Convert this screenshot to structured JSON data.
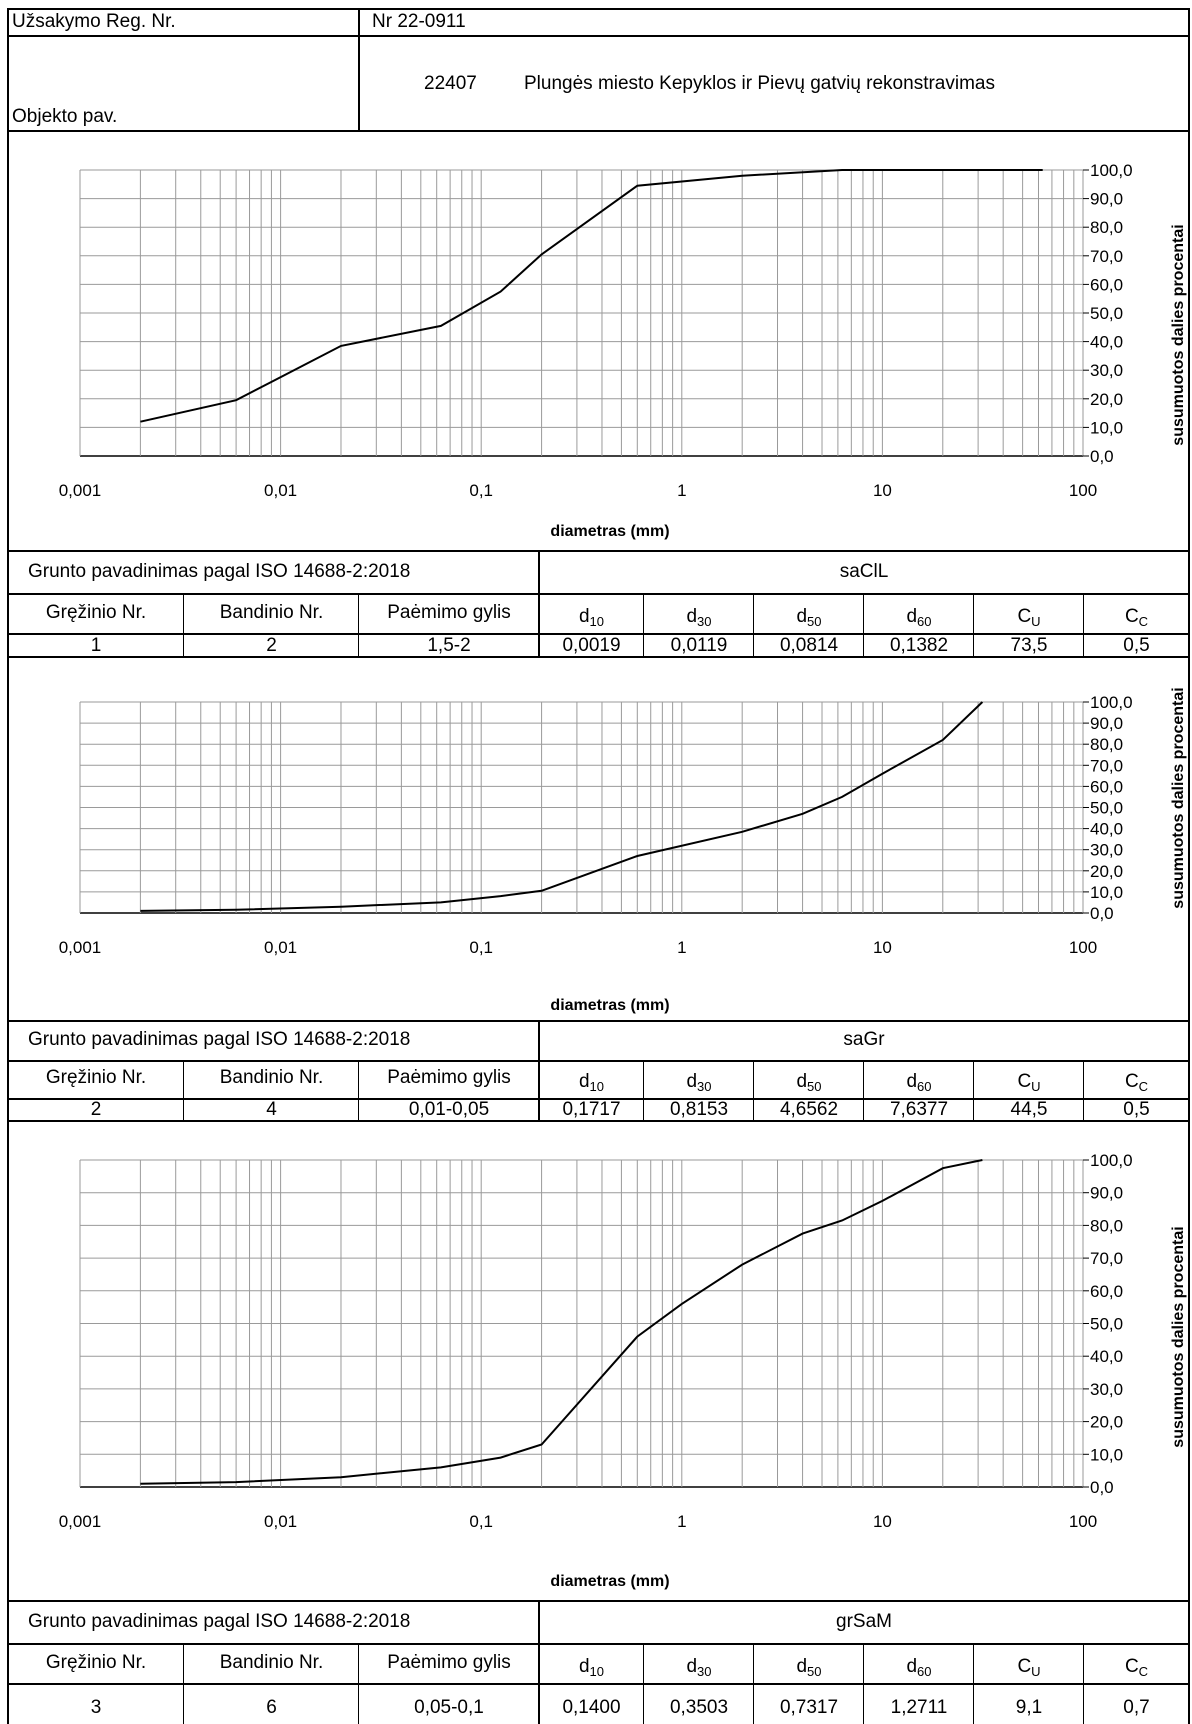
{
  "header": {
    "order_label": "Užsakymo Reg. Nr.",
    "order_value": "Nr 22-0911",
    "object_label": "Objekto pav.",
    "object_code": "22407",
    "object_name": "Plungės miesto Kepyklos ir Pievų gatvių rekonstravimas"
  },
  "axes": {
    "xlabel": "diametras (mm)",
    "ylabel": "susumuotos dalies procentai",
    "xticks": [
      "0,001",
      "0,01",
      "0,1",
      "1",
      "10",
      "100"
    ],
    "yticks": [
      "0,0",
      "10,0",
      "20,0",
      "30,0",
      "40,0",
      "50,0",
      "60,0",
      "70,0",
      "80,0",
      "90,0",
      "100,0"
    ]
  },
  "table_labels": {
    "soil_name": "Grunto pavadinimas pagal ISO 14688-2:2018",
    "borehole": "Gręžinio Nr.",
    "sample": "Bandinio Nr.",
    "depth": "Paėmimo gylis",
    "d10": "d",
    "d10_sub": "10",
    "d30": "d",
    "d30_sub": "30",
    "d50": "d",
    "d50_sub": "50",
    "d60": "d",
    "d60_sub": "60",
    "cu": "C",
    "cu_sub": "U",
    "cc": "C",
    "cc_sub": "C"
  },
  "samples": [
    {
      "soil": "saClL",
      "borehole": "1",
      "sample": "2",
      "depth": "1,5-2",
      "d10": "0,0019",
      "d30": "0,0119",
      "d50": "0,0814",
      "d60": "0,1382",
      "cu": "73,5",
      "cc": "0,5"
    },
    {
      "soil": "saGr",
      "borehole": "2",
      "sample": "4",
      "depth": "0,01-0,05",
      "d10": "0,1717",
      "d30": "0,8153",
      "d50": "4,6562",
      "d60": "7,6377",
      "cu": "44,5",
      "cc": "0,5"
    },
    {
      "soil": "grSaM",
      "borehole": "3",
      "sample": "6",
      "depth": "0,05-0,1",
      "d10": "0,1400",
      "d30": "0,3503",
      "d50": "0,7317",
      "d60": "1,2711",
      "cu": "9,1",
      "cc": "0,7"
    }
  ],
  "chart_data": [
    {
      "type": "line",
      "xscale": "log",
      "xlim": [
        0.001,
        100
      ],
      "ylim": [
        0,
        100
      ],
      "xlabel": "diametras (mm)",
      "ylabel": "susumuotos dalies procentai",
      "grid": true,
      "series": [
        {
          "x": [
            0.002,
            0.006,
            0.02,
            0.063,
            0.125,
            0.2,
            0.6,
            2,
            6.3,
            20,
            63
          ],
          "y": [
            12,
            19.5,
            38.5,
            45.5,
            57.5,
            70.5,
            94.5,
            98,
            100,
            100,
            100
          ]
        }
      ]
    },
    {
      "type": "line",
      "xscale": "log",
      "xlim": [
        0.001,
        100
      ],
      "ylim": [
        0,
        100
      ],
      "xlabel": "diametras (mm)",
      "ylabel": "susumuotos dalies procentai",
      "grid": true,
      "series": [
        {
          "x": [
            0.002,
            0.006,
            0.02,
            0.063,
            0.125,
            0.2,
            0.6,
            2,
            4,
            6.3,
            10,
            20,
            31.5
          ],
          "y": [
            1,
            1.5,
            3,
            5,
            8,
            10.5,
            27,
            38.5,
            47,
            55,
            66,
            82,
            100
          ]
        }
      ]
    },
    {
      "type": "line",
      "xscale": "log",
      "xlim": [
        0.001,
        100
      ],
      "ylim": [
        0,
        100
      ],
      "xlabel": "diametras (mm)",
      "ylabel": "susumuotos dalies procentai",
      "grid": true,
      "series": [
        {
          "x": [
            0.002,
            0.006,
            0.02,
            0.063,
            0.125,
            0.2,
            0.6,
            1,
            2,
            4,
            6.3,
            10,
            20,
            31.5
          ],
          "y": [
            1,
            1.5,
            3,
            6,
            9,
            13,
            46,
            56,
            68,
            77.5,
            81.5,
            87.5,
            97.5,
            100
          ]
        }
      ]
    }
  ]
}
